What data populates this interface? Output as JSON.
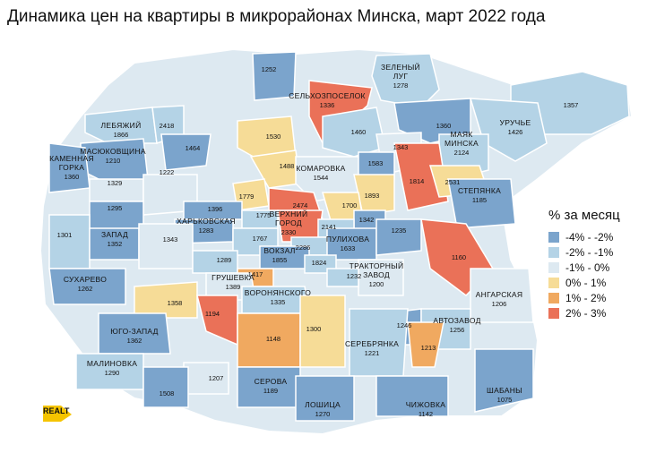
{
  "title": "Динамика цен на квартиры в микрорайонах Минска, март 2022 года",
  "legend": {
    "title": "% за месяц",
    "items": [
      {
        "label": "-4% - -2%",
        "color": "#7ba4cc"
      },
      {
        "label": "-2% - -1%",
        "color": "#b4d3e6"
      },
      {
        "label": "-1% - 0%",
        "color": "#dde9f1"
      },
      {
        "label": "0% - 1%",
        "color": "#f6dc97"
      },
      {
        "label": "1% - 2%",
        "color": "#f0a960"
      },
      {
        "label": "2% - 3%",
        "color": "#ea7158"
      }
    ]
  },
  "logo": "REALT",
  "districts": [
    {
      "name": "",
      "value": "1252",
      "band": 0
    },
    {
      "name": "ЗЕЛЕНЫЙ ЛУГ",
      "value": "1278",
      "band": 1
    },
    {
      "name": "СЕЛЬХОЗПОСЕЛОК",
      "value": "1336",
      "band": 5
    },
    {
      "name": "",
      "value": "1357",
      "band": 1
    },
    {
      "name": "ЛЕБЯЖИЙ",
      "value": "1866",
      "band": 1
    },
    {
      "name": "",
      "value": "2418",
      "band": 1
    },
    {
      "name": "",
      "value": "1530",
      "band": 3
    },
    {
      "name": "",
      "value": "1460",
      "band": 1
    },
    {
      "name": "",
      "value": "1360",
      "band": 0
    },
    {
      "name": "УРУЧЬЕ",
      "value": "1426",
      "band": 1
    },
    {
      "name": "МАСЮКОВЩИНА",
      "value": "1210",
      "band": 0
    },
    {
      "name": "",
      "value": "1464",
      "band": 0
    },
    {
      "name": "",
      "value": "1343",
      "band": 2
    },
    {
      "name": "МАЯК МИНСКА",
      "value": "2124",
      "band": 1
    },
    {
      "name": "КАМЕННАЯ ГОРКА",
      "value": "1360",
      "band": 0
    },
    {
      "name": "",
      "value": "1488",
      "band": 3
    },
    {
      "name": "КОМАРОВКА",
      "value": "1544",
      "band": 2
    },
    {
      "name": "",
      "value": "1583",
      "band": 0
    },
    {
      "name": "",
      "value": "1329",
      "band": 2
    },
    {
      "name": "",
      "value": "1222",
      "band": 2
    },
    {
      "name": "",
      "value": "1779",
      "band": 3
    },
    {
      "name": "",
      "value": "1893",
      "band": 3
    },
    {
      "name": "",
      "value": "1814",
      "band": 5
    },
    {
      "name": "",
      "value": "2531",
      "band": 3
    },
    {
      "name": "",
      "value": "2474",
      "band": 5
    },
    {
      "name": "",
      "value": "1700",
      "band": 3
    },
    {
      "name": "СТЕПЯНКА",
      "value": "1185",
      "band": 0
    },
    {
      "name": "",
      "value": "1295",
      "band": 0
    },
    {
      "name": "",
      "value": "1396",
      "band": 0
    },
    {
      "name": "",
      "value": "1775",
      "band": 1
    },
    {
      "name": "ВЕРХНИЙ ГОРОД",
      "value": "2330",
      "band": 5
    },
    {
      "name": "",
      "value": "1342",
      "band": 0
    },
    {
      "name": "",
      "value": "2141",
      "band": 1
    },
    {
      "name": "ХАРЬКОВСКАЯ",
      "value": "1283",
      "band": 0
    },
    {
      "name": "",
      "value": "1301",
      "band": 1
    },
    {
      "name": "ЗАПАД",
      "value": "1352",
      "band": 0
    },
    {
      "name": "",
      "value": "1343",
      "band": 2
    },
    {
      "name": "",
      "value": "1767",
      "band": 1
    },
    {
      "name": "",
      "value": "2286",
      "band": 1
    },
    {
      "name": "ПУЛИХОВА",
      "value": "1633",
      "band": 0
    },
    {
      "name": "",
      "value": "1235",
      "band": 0
    },
    {
      "name": "ВОКЗАЛ",
      "value": "1855",
      "band": 0
    },
    {
      "name": "",
      "value": "1824",
      "band": 1
    },
    {
      "name": "",
      "value": "1160",
      "band": 5
    },
    {
      "name": "",
      "value": "1289",
      "band": 1
    },
    {
      "name": "",
      "value": "1417",
      "band": 4
    },
    {
      "name": "ТРАКТОРНЫЙ ЗАВОД",
      "value": "1200",
      "band": 2
    },
    {
      "name": "",
      "value": "1232",
      "band": 1
    },
    {
      "name": "СУХАРЕВО",
      "value": "1262",
      "band": 0
    },
    {
      "name": "ГРУШЕВКА",
      "value": "1389",
      "band": 2
    },
    {
      "name": "АНГАРСКАЯ",
      "value": "1206",
      "band": 2
    },
    {
      "name": "ВОРОНЯНСКОГО",
      "value": "1335",
      "band": 1
    },
    {
      "name": "",
      "value": "1358",
      "band": 3
    },
    {
      "name": "",
      "value": "1194",
      "band": 5
    },
    {
      "name": "ЮГО-ЗАПАД",
      "value": "1362",
      "band": 0
    },
    {
      "name": "",
      "value": "1148",
      "band": 4
    },
    {
      "name": "",
      "value": "1300",
      "band": 3
    },
    {
      "name": "",
      "value": "1246",
      "band": 0
    },
    {
      "name": "АВТОЗАВОД",
      "value": "1256",
      "band": 1
    },
    {
      "name": "",
      "value": "1213",
      "band": 4
    },
    {
      "name": "СЕРЕБРЯНКА",
      "value": "1221",
      "band": 1
    },
    {
      "name": "МАЛИНОВКА",
      "value": "1290",
      "band": 1
    },
    {
      "name": "",
      "value": "1207",
      "band": 2
    },
    {
      "name": "",
      "value": "1508",
      "band": 0
    },
    {
      "name": "СЕРОВА",
      "value": "1189",
      "band": 0
    },
    {
      "name": "ШАБАНЫ",
      "value": "1075",
      "band": 0
    },
    {
      "name": "ЛОШИЦА",
      "value": "1270",
      "band": 0
    },
    {
      "name": "ЧИЖОВКА",
      "value": "1142",
      "band": 0
    }
  ]
}
